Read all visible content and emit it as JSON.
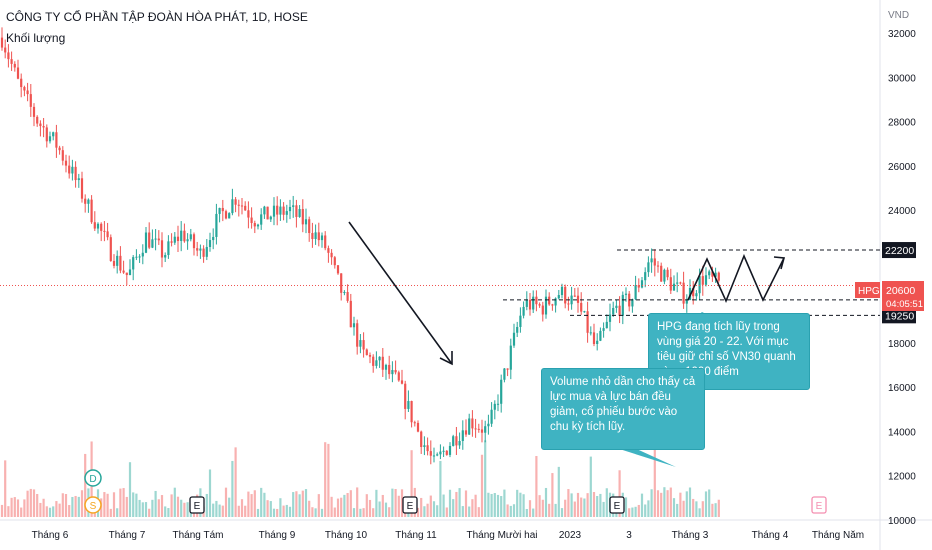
{
  "header": {
    "title": "CÔNG TY CỔ PHẦN TẬP ĐOÀN HÒA PHÁT, 1D, HOSE",
    "subtitle": "Khối lượng"
  },
  "colors": {
    "up": "#26a69a",
    "down": "#ef5350",
    "note_bg": "#3fb3c2",
    "price_tag": "#ef5350"
  },
  "chart_data": {
    "type": "candlestick",
    "title": "CÔNG TY CỔ PHẦN TẬP ĐOÀN HÒA PHÁT, 1D, HOSE",
    "y_unit": "VND",
    "ylim": [
      10000,
      33500
    ],
    "y_ticks": [
      10000,
      12000,
      14000,
      16000,
      18000,
      20000,
      22000,
      24000,
      26000,
      28000,
      30000,
      32000
    ],
    "x_ticks": [
      "Tháng 6",
      "Tháng 7",
      "Tháng Tám",
      "Tháng 9",
      "Tháng 10",
      "Tháng 11",
      "Tháng Mười hai",
      "2023",
      "3",
      "Tháng 3",
      "Tháng 4",
      "Tháng Năm"
    ],
    "price_levels": [
      {
        "label": "22200",
        "value": 22200,
        "style": "dashed"
      },
      {
        "label": "19950",
        "value": 19950,
        "style": "dashed"
      },
      {
        "label": "19250",
        "value": 19250,
        "style": "dashed"
      }
    ],
    "current_price": {
      "symbol": "HPG",
      "value": "20600",
      "countdown": "04:05:51"
    },
    "price_path": [
      31800,
      29500,
      28000,
      27000,
      25500,
      23800,
      22200,
      21000,
      22800,
      22000,
      23000,
      22000,
      23600,
      24600,
      23600,
      23800,
      24000,
      23300,
      22300,
      20000,
      17500,
      17000,
      16200,
      14200,
      12500,
      13600,
      14500,
      14000,
      16800,
      19800,
      19600,
      20300,
      19700,
      17700,
      19500,
      20000,
      21800,
      20800,
      20100,
      21000,
      20600
    ],
    "volume": [],
    "events": [
      {
        "label": "D",
        "type": "dividend"
      },
      {
        "label": "S",
        "type": "split"
      },
      {
        "label": "E",
        "type": "earnings"
      },
      {
        "label": "E",
        "type": "earnings"
      },
      {
        "label": "E",
        "type": "earnings"
      },
      {
        "label": "E",
        "type": "earnings"
      }
    ],
    "annotations": [
      {
        "text": "HPG đang tích lũy trong vùng giá 20 - 22. Với mục tiêu giữ chỉ số VN30 quanh vùng 1000 điểm"
      },
      {
        "text": "Volume nhỏ dần cho thấy cả lực mua và lực bán đều giảm, cổ phiếu bước vào chu kỳ tích lũy."
      }
    ]
  }
}
